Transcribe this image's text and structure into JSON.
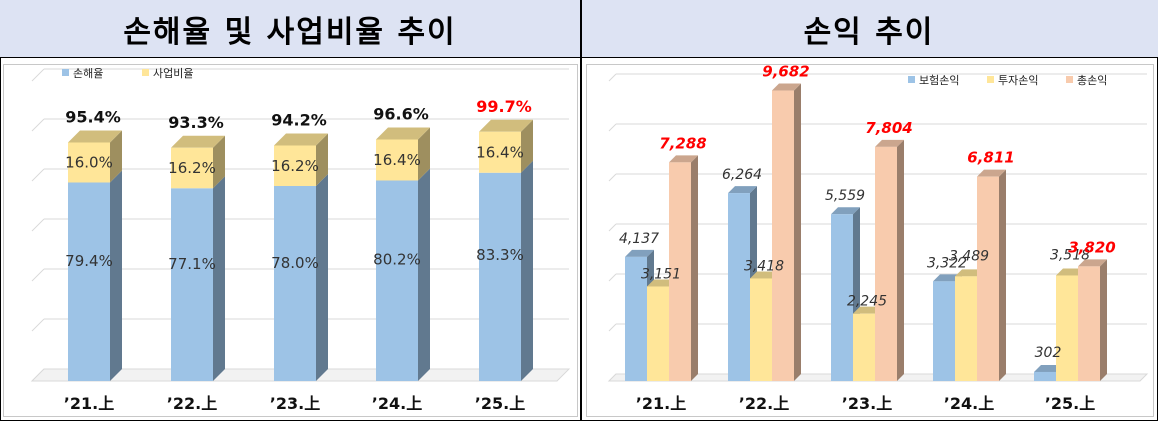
{
  "header": {
    "left_title": "손해율 및 사업비율 추이",
    "right_title": "손익 추이"
  },
  "chart_data": [
    {
      "type": "bar",
      "stacked": true,
      "title": "손해율 및 사업비율 추이",
      "categories": [
        "’21.上",
        "’22.上",
        "’23.上",
        "’24.上",
        "’25.上"
      ],
      "series": [
        {
          "name": "손해율",
          "values": [
            79.4,
            77.1,
            78.0,
            80.2,
            83.3
          ],
          "labels": [
            "79.4%",
            "77.1%",
            "78.0%",
            "80.2%",
            "83.3%"
          ],
          "color": "#9dc3e6"
        },
        {
          "name": "사업비율",
          "values": [
            16.0,
            16.2,
            16.2,
            16.4,
            16.4
          ],
          "labels": [
            "16.0%",
            "16.2%",
            "16.2%",
            "16.4%",
            "16.4%"
          ],
          "color": "#ffe699"
        }
      ],
      "totals": [
        95.4,
        93.3,
        94.2,
        96.6,
        99.7
      ],
      "total_labels": [
        "95.4%",
        "93.3%",
        "94.2%",
        "96.6%",
        "99.7%"
      ],
      "highlight_total_index": 4,
      "highlight_color": "#ff0000",
      "ylim": [
        0,
        120
      ],
      "grid": true,
      "legend_position": "top-left"
    },
    {
      "type": "bar",
      "title": "손익 추이",
      "categories": [
        "’21.上",
        "’22.上",
        "’23.上",
        "’24.上",
        "’25.上"
      ],
      "series": [
        {
          "name": "보험손익",
          "values": [
            4137,
            6264,
            5559,
            3322,
            302
          ],
          "labels": [
            "4,137",
            "6,264",
            "5,559",
            "3,322",
            "302"
          ],
          "color": "#9dc3e6"
        },
        {
          "name": "투자손익",
          "values": [
            3151,
            3418,
            2245,
            3489,
            3518
          ],
          "labels": [
            "3,151",
            "3,418",
            "2,245",
            "3,489",
            "3,518"
          ],
          "color": "#ffe699"
        },
        {
          "name": "총손익",
          "values": [
            7288,
            9682,
            7804,
            6811,
            3820
          ],
          "labels": [
            "7,288",
            "9,682",
            "7,804",
            "6,811",
            "3,820"
          ],
          "color": "#f8cbad"
        }
      ],
      "total_label_color": "#ff0000",
      "ylim": [
        0,
        10000
      ],
      "grid": true,
      "legend_position": "top-right"
    }
  ]
}
